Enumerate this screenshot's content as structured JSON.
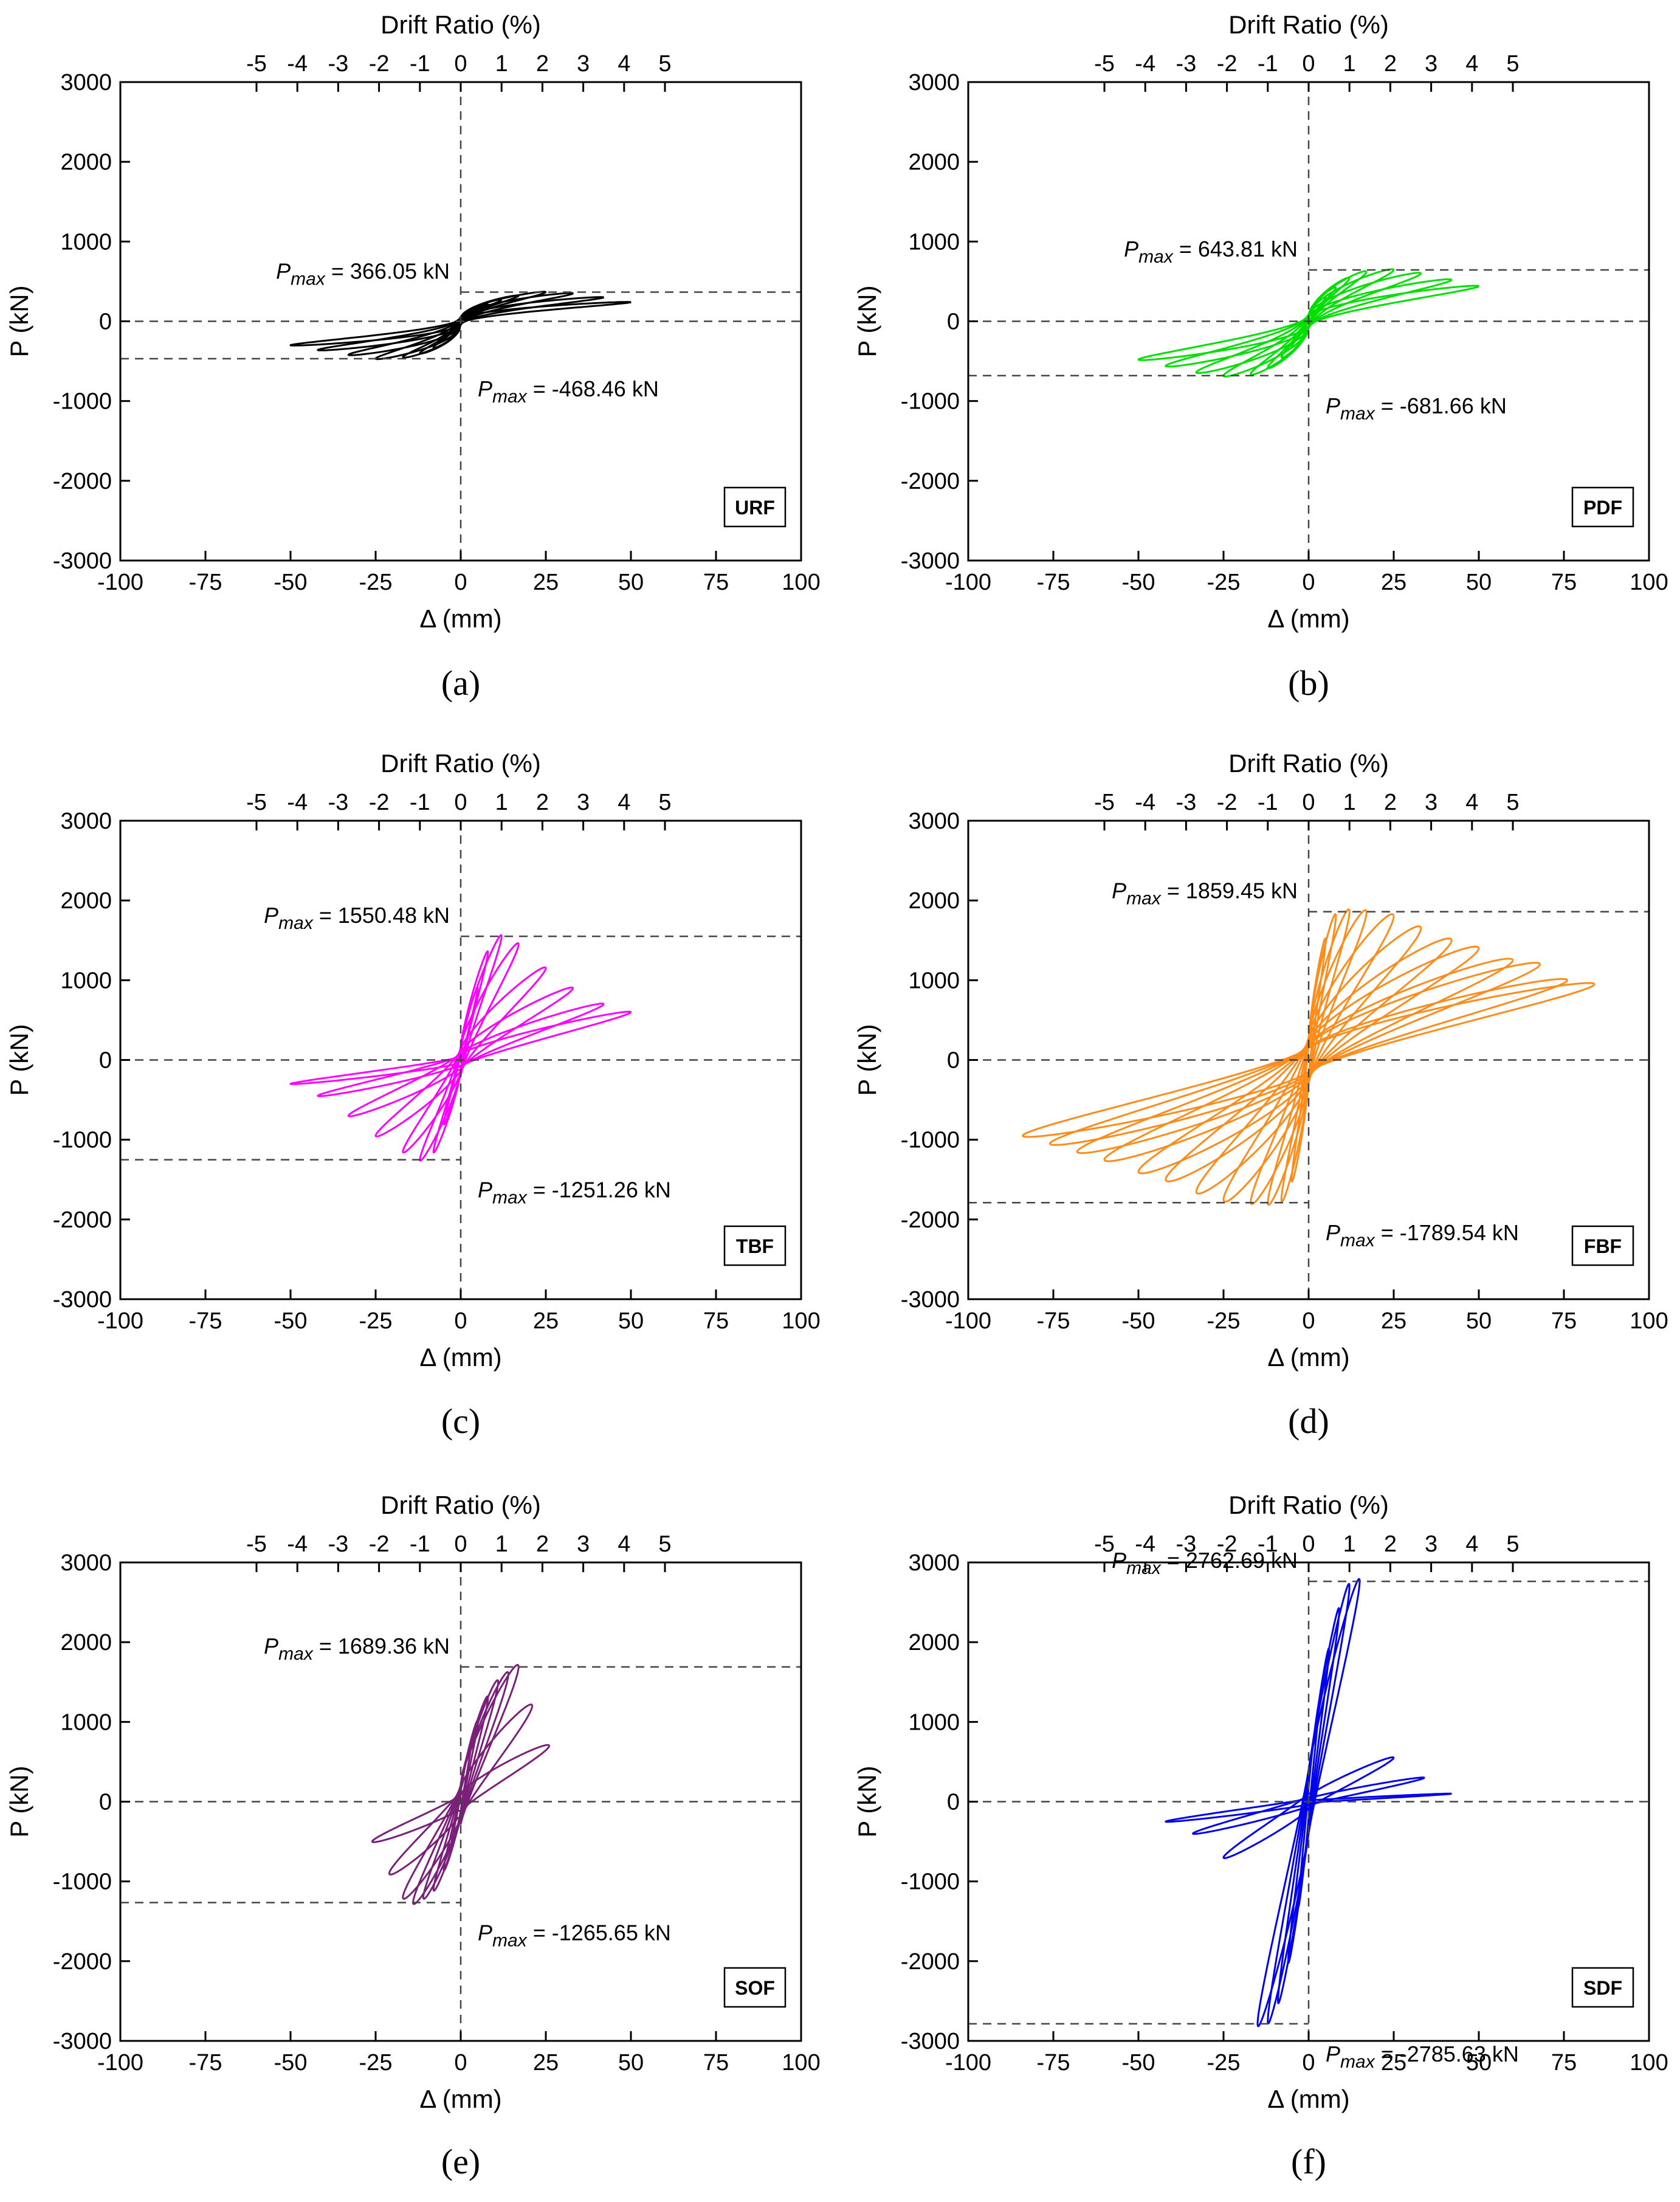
{
  "chart_data": [
    {
      "type": "line",
      "panel": "(a)",
      "tag": "URF",
      "color": "#000000",
      "xlabel": "Δ  (mm)",
      "ylabel": "P  (kN)",
      "x2label": "Drift Ratio (%)",
      "xlim": [
        -100,
        100
      ],
      "ylim": [
        -3000,
        3000
      ],
      "xticks": [
        -100,
        -75,
        -50,
        -25,
        0,
        25,
        50,
        75,
        100
      ],
      "yticks": [
        3000,
        2000,
        1000,
        0,
        -1000,
        -2000,
        -3000
      ],
      "x2ticks": [
        -5,
        -4,
        -3,
        -2,
        -1,
        0,
        1,
        2,
        3,
        4,
        5
      ],
      "pmax_pos": {
        "label": "= 366.05 kN",
        "value": 366.05
      },
      "pmax_neg": {
        "label": "= -468.46 kN",
        "value": -468.46
      },
      "amplitudes_mm": [
        5,
        8,
        12,
        17,
        25,
        33,
        42,
        50
      ],
      "peaks_pos_kN": [
        150,
        210,
        270,
        320,
        366,
        350,
        300,
        240
      ],
      "peaks_neg_kN": [
        -230,
        -330,
        -400,
        -450,
        -468,
        -420,
        -360,
        -300
      ],
      "residual_frac": 0.12,
      "pinch": 0.0
    },
    {
      "type": "line",
      "panel": "(b)",
      "tag": "PDF",
      "color": "#00e000",
      "xlabel": "Δ  (mm)",
      "ylabel": "P  (kN)",
      "x2label": "Drift Ratio (%)",
      "xlim": [
        -100,
        100
      ],
      "ylim": [
        -3000,
        3000
      ],
      "xticks": [
        -100,
        -75,
        -50,
        -25,
        0,
        25,
        50,
        75,
        100
      ],
      "yticks": [
        3000,
        2000,
        1000,
        0,
        -1000,
        -2000,
        -3000
      ],
      "x2ticks": [
        -5,
        -4,
        -3,
        -2,
        -1,
        0,
        1,
        2,
        3,
        4,
        5
      ],
      "pmax_pos": {
        "label": "= 643.81 kN",
        "value": 643.81
      },
      "pmax_neg": {
        "label": "= -681.66 kN",
        "value": -681.66
      },
      "amplitudes_mm": [
        5,
        8,
        12,
        17,
        25,
        33,
        42,
        50
      ],
      "peaks_pos_kN": [
        300,
        420,
        540,
        620,
        644,
        600,
        520,
        440
      ],
      "peaks_neg_kN": [
        -320,
        -450,
        -580,
        -660,
        -682,
        -640,
        -560,
        -480
      ],
      "residual_frac": 0.14,
      "pinch": 0.1
    },
    {
      "type": "line",
      "panel": "(c)",
      "tag": "TBF",
      "color": "#ff00ff",
      "xlabel": "Δ  (mm)",
      "ylabel": "P  (kN)",
      "x2label": "Drift Ratio (%)",
      "xlim": [
        -100,
        100
      ],
      "ylim": [
        -3000,
        3000
      ],
      "xticks": [
        -100,
        -75,
        -50,
        -25,
        0,
        25,
        50,
        75,
        100
      ],
      "yticks": [
        3000,
        2000,
        1000,
        0,
        -1000,
        -2000,
        -3000
      ],
      "x2ticks": [
        -5,
        -4,
        -3,
        -2,
        -1,
        0,
        1,
        2,
        3,
        4,
        5
      ],
      "pmax_pos": {
        "label": "= 1550.48 kN",
        "value": 1550.48
      },
      "pmax_neg": {
        "label": "= -1251.26 kN",
        "value": -1251.26
      },
      "amplitudes_mm": [
        5,
        8,
        12,
        17,
        25,
        33,
        42,
        50
      ],
      "peaks_pos_kN": [
        900,
        1350,
        1550,
        1450,
        1150,
        900,
        700,
        600
      ],
      "peaks_neg_kN": [
        -800,
        -1150,
        -1251,
        -1150,
        -950,
        -700,
        -450,
        -300
      ],
      "residual_frac": 0.15,
      "pinch": 0.3
    },
    {
      "type": "line",
      "panel": "(d)",
      "tag": "FBF",
      "color": "#ff8c1a",
      "xlabel": "Δ  (mm)",
      "ylabel": "P  (kN)",
      "x2label": "Drift Ratio (%)",
      "xlim": [
        -100,
        100
      ],
      "ylim": [
        -3000,
        3000
      ],
      "xticks": [
        -100,
        -75,
        -50,
        -25,
        0,
        25,
        50,
        75,
        100
      ],
      "yticks": [
        3000,
        2000,
        1000,
        0,
        -1000,
        -2000,
        -3000
      ],
      "x2ticks": [
        -5,
        -4,
        -3,
        -2,
        -1,
        0,
        1,
        2,
        3,
        4,
        5
      ],
      "pmax_pos": {
        "label": "= 1859.45 kN",
        "value": 1859.45
      },
      "pmax_neg": {
        "label": "= -1789.54 kN",
        "value": -1789.54
      },
      "amplitudes_mm": [
        5,
        8,
        12,
        17,
        25,
        33,
        42,
        50,
        60,
        68,
        76,
        84
      ],
      "peaks_pos_kN": [
        1500,
        1800,
        1859,
        1850,
        1800,
        1650,
        1500,
        1400,
        1250,
        1200,
        1000,
        950
      ],
      "peaks_neg_kN": [
        -1500,
        -1750,
        -1789,
        -1780,
        -1750,
        -1650,
        -1500,
        -1400,
        -1250,
        -1150,
        -1050,
        -950
      ],
      "residual_frac": 0.18,
      "pinch": 0.25
    },
    {
      "type": "line",
      "panel": "(e)",
      "tag": "SOF",
      "color": "#7a1f7a",
      "xlabel": "Δ  (mm)",
      "ylabel": "P  (kN)",
      "x2label": "Drift Ratio (%)",
      "xlim": [
        -100,
        100
      ],
      "ylim": [
        -3000,
        3000
      ],
      "xticks": [
        -100,
        -75,
        -50,
        -25,
        0,
        25,
        50,
        75,
        100
      ],
      "yticks": [
        3000,
        2000,
        1000,
        0,
        -1000,
        -2000,
        -3000
      ],
      "x2ticks": [
        -5,
        -4,
        -3,
        -2,
        -1,
        0,
        1,
        2,
        3,
        4,
        5
      ],
      "pmax_pos": {
        "label": "= 1689.36 kN",
        "value": 1689.36
      },
      "pmax_neg": {
        "label": "= -1265.65 kN",
        "value": -1265.65
      },
      "amplitudes_mm": [
        3,
        5,
        8,
        11,
        14,
        17,
        21,
        26
      ],
      "peaks_pos_kN": [
        700,
        1000,
        1300,
        1500,
        1600,
        1689,
        1200,
        700
      ],
      "peaks_neg_kN": [
        -600,
        -850,
        -1100,
        -1200,
        -1265,
        -1200,
        -900,
        -500
      ],
      "residual_frac": 0.2,
      "pinch": 0.35
    },
    {
      "type": "line",
      "panel": "(f)",
      "tag": "SDF",
      "color": "#0000ee",
      "xlabel": "Δ  (mm)",
      "ylabel": "P  (kN)",
      "x2label": "Drift Ratio (%)",
      "xlim": [
        -100,
        100
      ],
      "ylim": [
        -3000,
        3000
      ],
      "xticks": [
        -100,
        -75,
        -50,
        -25,
        0,
        25,
        50,
        75,
        100
      ],
      "yticks": [
        3000,
        2000,
        1000,
        0,
        -1000,
        -2000,
        -3000
      ],
      "x2ticks": [
        -5,
        -4,
        -3,
        -2,
        -1,
        0,
        1,
        2,
        3,
        4,
        5
      ],
      "pmax_pos": {
        "label": "= 2762.69 kN",
        "value": 2762.69
      },
      "pmax_neg": {
        "label": "= -2785.63 kN",
        "value": -2785.63
      },
      "amplitudes_mm": [
        3,
        6,
        9,
        12,
        15,
        25,
        34,
        42
      ],
      "peaks_pos_kN": [
        1200,
        1900,
        2400,
        2700,
        2762,
        550,
        300,
        100
      ],
      "peaks_neg_kN": [
        -1300,
        -2000,
        -2500,
        -2750,
        -2785,
        -700,
        -400,
        -250
      ],
      "residual_frac": 0.18,
      "pinch": 0.4
    }
  ]
}
